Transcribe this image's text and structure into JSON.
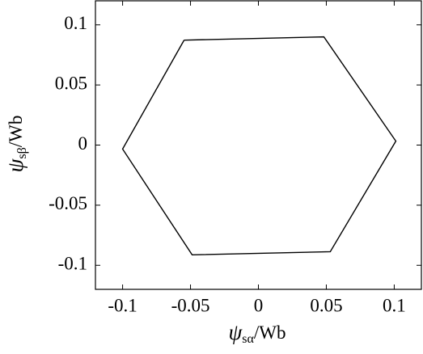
{
  "chart_data": {
    "type": "line",
    "x_label": {
      "symbol": "ψ",
      "subscript": "sα",
      "unit": "/Wb"
    },
    "y_label": {
      "symbol": "ψ",
      "subscript": "sβ",
      "unit": "/Wb"
    },
    "series": [
      {
        "color": "#000000",
        "x": [
          -0.0547,
          0.0482,
          0.1012,
          0.0529,
          -0.0488,
          -0.1,
          -0.0547
        ],
        "values": [
          0.0873,
          0.09,
          0.0033,
          -0.0887,
          -0.0913,
          -0.0033,
          0.0873
        ]
      }
    ],
    "xlim": [
      -0.12,
      0.12
    ],
    "xticks": [
      -0.1,
      -0.05,
      0,
      0.05,
      0.1
    ],
    "ylim": [
      -0.12,
      0.12
    ],
    "yticks": [
      -0.1,
      -0.05,
      0,
      0.05,
      0.1
    ],
    "grid": false
  }
}
